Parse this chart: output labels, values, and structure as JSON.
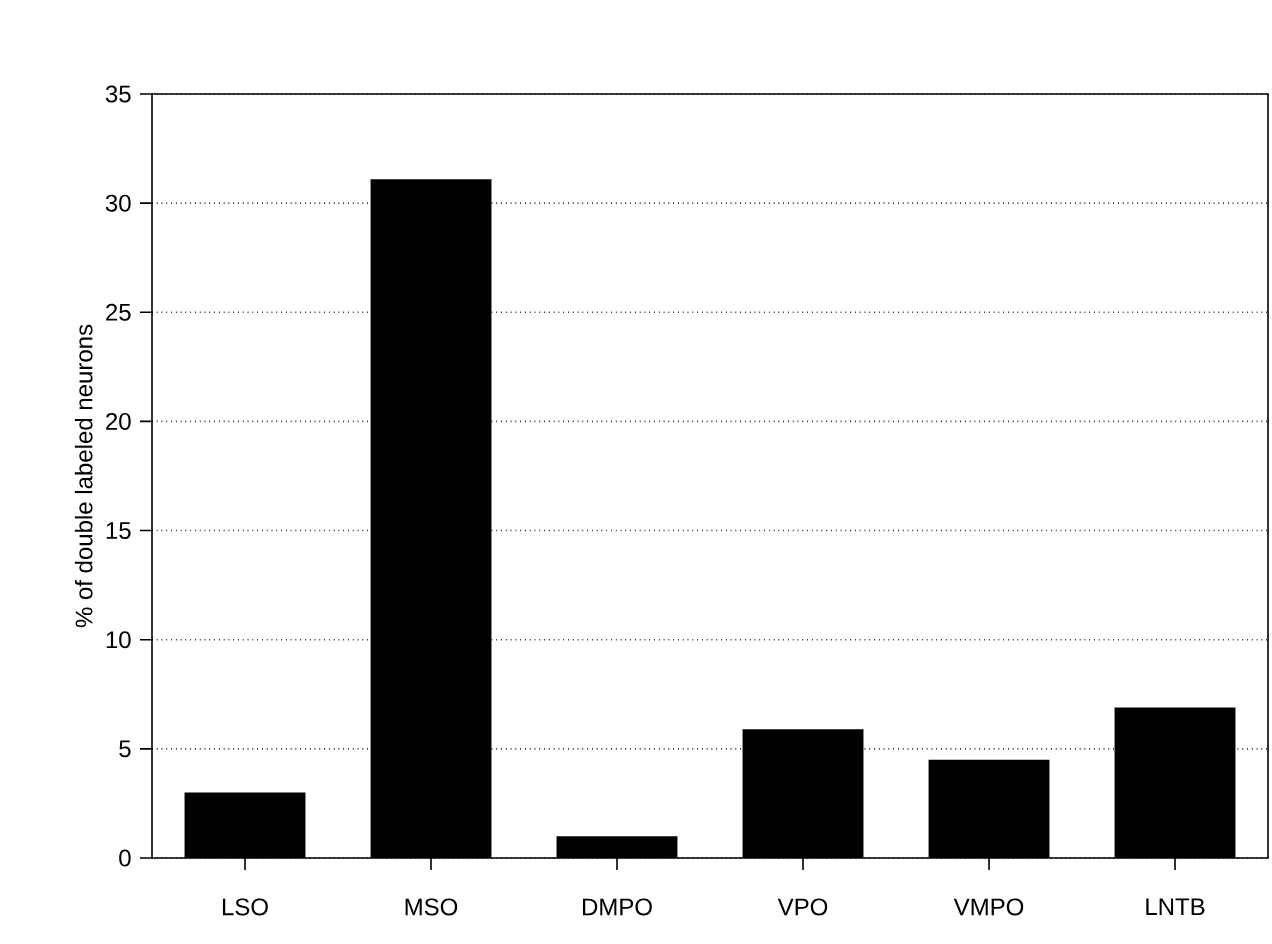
{
  "chart_data": {
    "type": "bar",
    "ylabel": "% of double labeled neurons",
    "categories": [
      "LSO",
      "MSO",
      "DMPO",
      "VPO",
      "VMPO",
      "LNTB"
    ],
    "values": [
      3,
      31.1,
      1,
      5.9,
      4.5,
      6.9
    ],
    "color": "#000000",
    "ylim": [
      0,
      35
    ],
    "yticks": [
      0,
      5,
      10,
      15,
      20,
      25,
      30,
      35
    ],
    "grid": "y"
  }
}
